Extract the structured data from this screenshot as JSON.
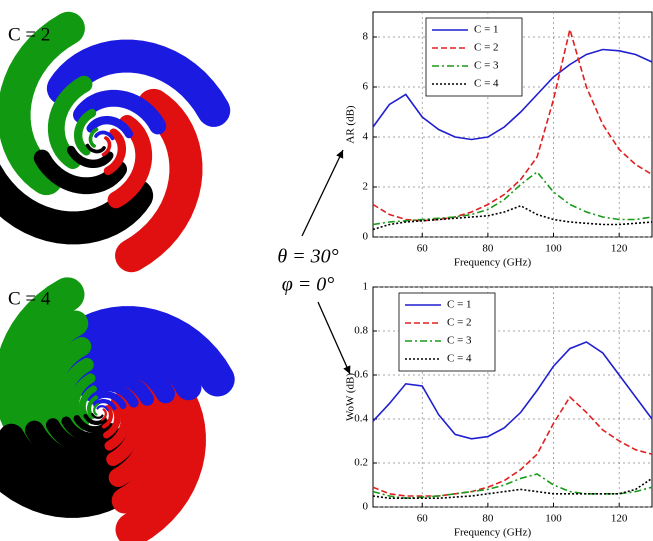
{
  "figure": {
    "case_labels": [
      "C = 2",
      "C = 4"
    ],
    "angle_labels": [
      "θ = 30°",
      "φ = 0°"
    ]
  },
  "chart_data": [
    {
      "type": "line",
      "xlabel": "Frequency (GHz)",
      "ylabel": "AR (dB)",
      "x": [
        45,
        50,
        55,
        60,
        65,
        70,
        75,
        80,
        85,
        90,
        95,
        100,
        105,
        110,
        115,
        120,
        125,
        130
      ],
      "xlim": [
        45,
        130
      ],
      "xticks": [
        60,
        80,
        100,
        120
      ],
      "ylim": [
        0,
        9
      ],
      "yticks": [
        0,
        2,
        4,
        6,
        8
      ],
      "grid": true,
      "legend": "upper left",
      "series": [
        {
          "name": "C = 1",
          "color": "#1f1fd0",
          "style": "solid",
          "values": [
            4.4,
            5.3,
            5.7,
            4.8,
            4.3,
            4.0,
            3.9,
            4.0,
            4.4,
            5.0,
            5.7,
            6.4,
            6.9,
            7.3,
            7.5,
            7.45,
            7.3,
            7.0
          ]
        },
        {
          "name": "C = 2",
          "color": "#e02020",
          "style": "dashed",
          "values": [
            1.3,
            0.9,
            0.7,
            0.65,
            0.7,
            0.8,
            1.0,
            1.3,
            1.7,
            2.3,
            3.2,
            5.5,
            8.3,
            6.0,
            4.5,
            3.5,
            2.9,
            2.5
          ]
        },
        {
          "name": "C = 3",
          "color": "#1a9a1a",
          "style": "dashdot",
          "values": [
            0.5,
            0.6,
            0.65,
            0.7,
            0.75,
            0.8,
            0.9,
            1.1,
            1.5,
            2.1,
            2.6,
            1.8,
            1.3,
            1.0,
            0.8,
            0.7,
            0.7,
            0.8
          ]
        },
        {
          "name": "C = 4",
          "color": "#000000",
          "style": "dotted",
          "values": [
            0.3,
            0.5,
            0.6,
            0.65,
            0.7,
            0.75,
            0.8,
            0.85,
            1.0,
            1.25,
            0.9,
            0.7,
            0.6,
            0.55,
            0.5,
            0.5,
            0.55,
            0.6
          ]
        }
      ]
    },
    {
      "type": "line",
      "xlabel": "Frequency (GHz)",
      "ylabel": "WoW (dB)",
      "x": [
        45,
        50,
        55,
        60,
        65,
        70,
        75,
        80,
        85,
        90,
        95,
        100,
        105,
        110,
        115,
        120,
        125,
        130
      ],
      "xlim": [
        45,
        130
      ],
      "xticks": [
        60,
        80,
        100,
        120
      ],
      "ylim": [
        0,
        1
      ],
      "yticks": [
        0,
        0.2,
        0.4,
        0.6,
        0.8,
        1
      ],
      "grid": true,
      "legend": "upper left",
      "series": [
        {
          "name": "C = 1",
          "color": "#1f1fd0",
          "style": "solid",
          "values": [
            0.39,
            0.47,
            0.56,
            0.55,
            0.42,
            0.33,
            0.31,
            0.32,
            0.36,
            0.43,
            0.53,
            0.64,
            0.72,
            0.75,
            0.7,
            0.6,
            0.5,
            0.4
          ]
        },
        {
          "name": "C = 2",
          "color": "#e02020",
          "style": "dashed",
          "values": [
            0.09,
            0.06,
            0.05,
            0.05,
            0.05,
            0.06,
            0.07,
            0.09,
            0.12,
            0.17,
            0.24,
            0.38,
            0.5,
            0.43,
            0.35,
            0.3,
            0.26,
            0.24
          ]
        },
        {
          "name": "C = 3",
          "color": "#1a9a1a",
          "style": "dashdot",
          "values": [
            0.07,
            0.05,
            0.04,
            0.045,
            0.05,
            0.06,
            0.07,
            0.08,
            0.1,
            0.13,
            0.15,
            0.1,
            0.07,
            0.06,
            0.06,
            0.06,
            0.07,
            0.09
          ]
        },
        {
          "name": "C = 4",
          "color": "#000000",
          "style": "dotted",
          "values": [
            0.05,
            0.04,
            0.04,
            0.04,
            0.04,
            0.045,
            0.05,
            0.06,
            0.07,
            0.08,
            0.07,
            0.06,
            0.06,
            0.06,
            0.06,
            0.06,
            0.08,
            0.13
          ]
        }
      ]
    }
  ]
}
